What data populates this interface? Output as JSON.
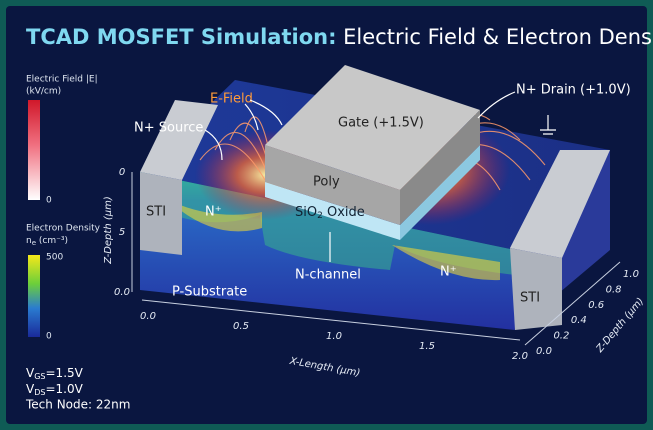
{
  "title": {
    "bold": "TCAD MOSFET Simulation:",
    "rest": " Electric Field & Electron Density"
  },
  "legend": {
    "efield": {
      "title": "Electric Field |E|",
      "unit": "(kV/cm)",
      "min": "0"
    },
    "density": {
      "title": "Electron Density",
      "unit_symbol": "n",
      "unit_sub": "e",
      "unit_rest": " (cm⁻³)",
      "max": "500",
      "min": "0"
    }
  },
  "labels": {
    "efield": "E-Field",
    "source": "N+ Source",
    "gate": "Gate (+1.5V)",
    "drain": "N+ Drain (+1.0V)",
    "poly": "Poly",
    "oxide": {
      "pre": "SiO",
      "sub": "2",
      "post": " Oxide"
    },
    "sti_left": "STI",
    "sti_right": "STI",
    "n_left": "N⁺",
    "n_right": "N⁺",
    "channel": "N-channel",
    "substrate": "P-Substrate"
  },
  "axes": {
    "z_left": {
      "title": "Z-Depth (μm)",
      "ticks": [
        "0",
        "5",
        "0.0"
      ]
    },
    "x": {
      "title": "X-Length (μm)",
      "ticks": [
        "0.0",
        "0.5",
        "1.0",
        "1.5",
        "2.0"
      ]
    },
    "z_right": {
      "title": "Z-Depth (μm)",
      "ticks": [
        "1.0",
        "0.8",
        "0.6",
        "0.4",
        "0.2",
        "0.0"
      ]
    }
  },
  "conditions": [
    {
      "symbol": "V",
      "sub": "GS",
      "rest": "=1.5V"
    },
    {
      "symbol": "V",
      "sub": "DS",
      "rest": "=1.0V"
    },
    {
      "text": "Tech Node: 22nm"
    }
  ]
}
